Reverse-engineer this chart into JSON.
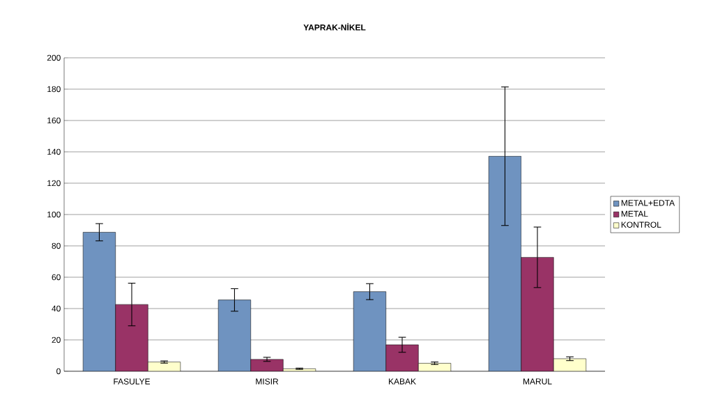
{
  "chart_data": {
    "type": "bar",
    "title": "YAPRAK-NİKEL",
    "categories": [
      "FASULYE",
      "MISIR",
      "KABAK",
      "MARUL"
    ],
    "series": [
      {
        "name": "METAL+EDTA",
        "color": "#6f93c0",
        "values": [
          88.7,
          45.5,
          50.8,
          137.2
        ],
        "errors": [
          5.5,
          7.2,
          5.1,
          44.2
        ]
      },
      {
        "name": "METAL",
        "color": "#993366",
        "values": [
          42.6,
          7.6,
          16.9,
          72.7
        ],
        "errors": [
          13.6,
          1.3,
          4.8,
          19.3
        ]
      },
      {
        "name": "KONTROL",
        "color": "#ffffcc",
        "values": [
          5.9,
          1.6,
          5.1,
          8.0
        ],
        "errors": [
          0.7,
          0.4,
          0.8,
          1.2
        ]
      }
    ],
    "ylim": [
      0,
      200
    ],
    "yticks": [
      0,
      20,
      40,
      60,
      80,
      100,
      120,
      140,
      160,
      180,
      200
    ],
    "grid": "y",
    "legend": "right"
  }
}
